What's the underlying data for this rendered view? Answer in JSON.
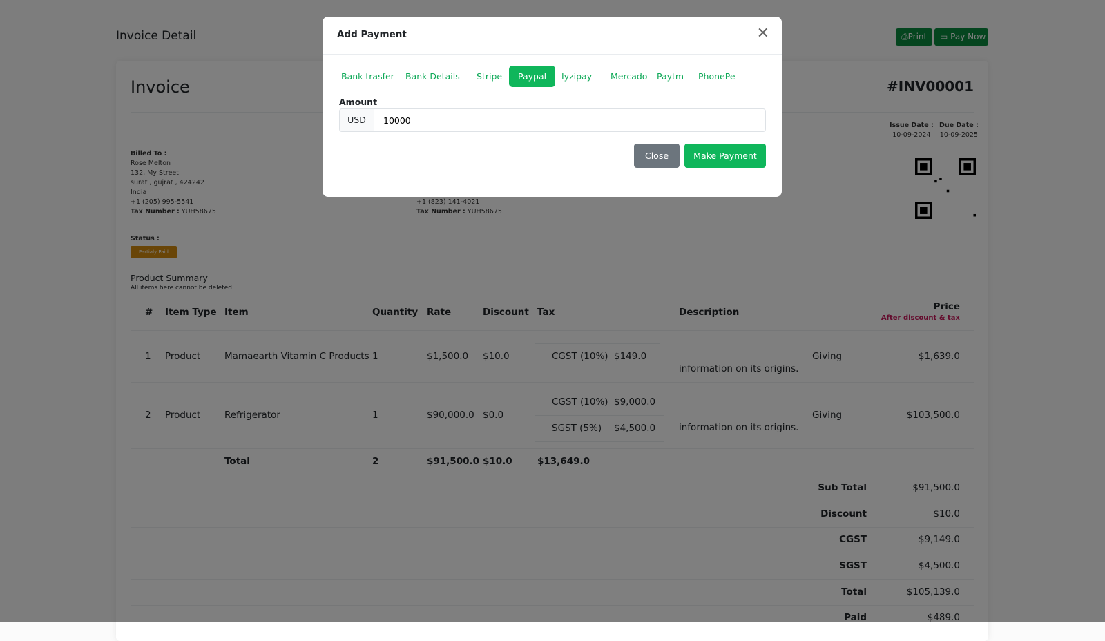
{
  "page": {
    "title": "Invoice Detail",
    "print_label": "Print",
    "paynow_label": "Pay Now"
  },
  "invoice": {
    "heading": "Invoice",
    "number": "#INV00001",
    "issue_label": "Issue Date :",
    "issue_date": "10-09-2024",
    "due_label": "Due Date :",
    "due_date": "10-09-2025",
    "billed_to": {
      "label": "Billed To :",
      "name": "Rose Melton",
      "street": "132, My Street",
      "city": "surat , gujrat , 424242",
      "country": "India",
      "phone": "+1 (205) 995-5541",
      "tax_label": "Tax Number :",
      "tax": "YUH58675"
    },
    "from": {
      "phone": "+1 (823) 141-4021",
      "tax_label": "Tax Number :",
      "tax": "YUH58675"
    },
    "status_label": "Status :",
    "status": "Partialy Paid",
    "status_color": "#d28b0f"
  },
  "summary": {
    "title": "Product Summary",
    "subtitle": "All items here cannot be deleted.",
    "headers": {
      "num": "#",
      "type": "Item Type",
      "item": "Item",
      "qty": "Quantity",
      "rate": "Rate",
      "discount": "Discount",
      "tax": "Tax",
      "description": "Description",
      "price": "Price",
      "price_note": "After discount & tax"
    },
    "rows": [
      {
        "num": "1",
        "type": "Product",
        "item": "Mamaearth Vitamin C Products",
        "qty": "1",
        "rate": "$1,500.0",
        "discount": "$10.0",
        "taxes": [
          {
            "name": "CGST (10%)",
            "amount": "$149.0"
          }
        ],
        "desc1": "Giving",
        "desc2": "information on its origins.",
        "price": "$1,639.0"
      },
      {
        "num": "2",
        "type": "Product",
        "item": "Refrigerator",
        "qty": "1",
        "rate": "$90,000.0",
        "discount": "$0.0",
        "taxes": [
          {
            "name": "CGST (10%)",
            "amount": "$9,000.0"
          },
          {
            "name": "SGST (5%)",
            "amount": "$4,500.0"
          }
        ],
        "desc1": "Giving",
        "desc2": "information on its origins.",
        "price": "$103,500.0"
      }
    ],
    "total": {
      "label": "Total",
      "qty": "2",
      "rate": "$91,500.0",
      "discount": "$10.0",
      "tax": "$13,649.0"
    },
    "totals": [
      {
        "label": "Sub Total",
        "value": "$91,500.0"
      },
      {
        "label": "Discount",
        "value": "$10.0"
      },
      {
        "label": "CGST",
        "value": "$9,149.0"
      },
      {
        "label": "SGST",
        "value": "$4,500.0"
      },
      {
        "label": "Total",
        "value": "$105,139.0"
      },
      {
        "label": "Paid",
        "value": "$489.0"
      }
    ]
  },
  "modal": {
    "title": "Add Payment",
    "tabs": [
      "Bank trasfer",
      "Bank Details",
      "Stripe",
      "Paypal",
      "Iyzipay",
      "Mercado",
      "Paytm",
      "PhonePe"
    ],
    "active_tab": "Paypal",
    "amount_label": "Amount",
    "currency": "USD",
    "amount": "10000",
    "close_label": "Close",
    "submit_label": "Make Payment",
    "accent": "#0fb65b"
  }
}
